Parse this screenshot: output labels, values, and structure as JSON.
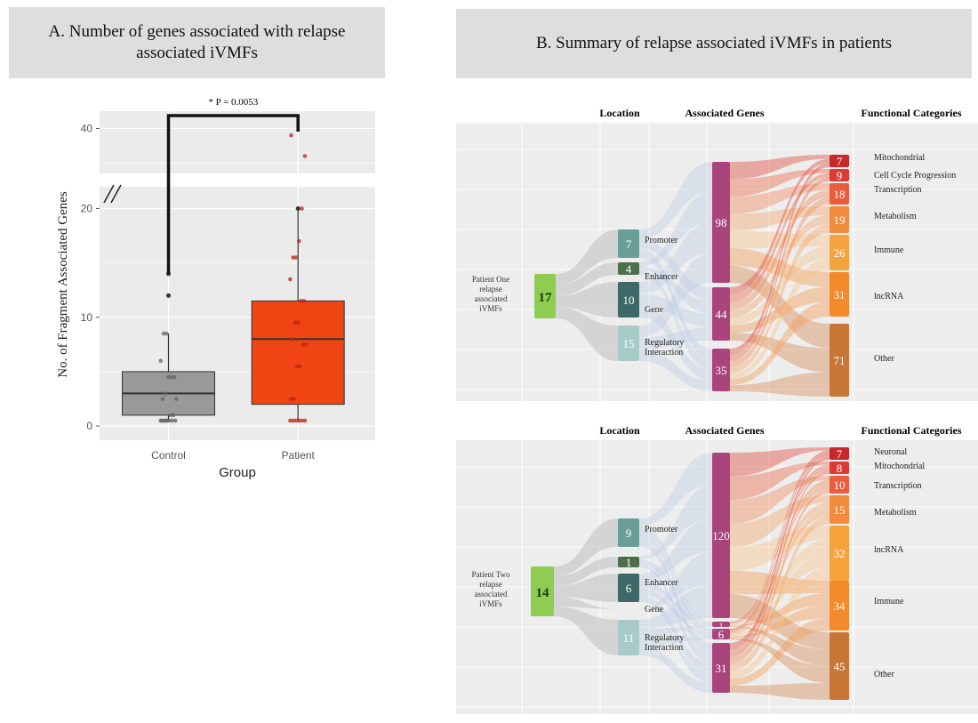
{
  "panel_a": {
    "title": "A.  Number of genes associated with relapse associated iVMFs"
  },
  "panel_b": {
    "title": "B.  Summary of relapse associated iVMFs in patients"
  },
  "chart_data": [
    {
      "type": "box",
      "title": "A.  Number of genes associated with relapse associated iVMFs",
      "xlabel": "Group",
      "ylabel": "No. of Fragment Associated Genes",
      "categories": [
        "Control",
        "Patient"
      ],
      "y_ticks_lower": [
        "0",
        "10",
        "20"
      ],
      "y_ticks_upper": [
        "40"
      ],
      "axis_break": true,
      "significance": "* P = 0.0053",
      "colors": {
        "Control": "#999999",
        "Patient": "#f04512",
        "background": "#ebebeb"
      },
      "boxes": [
        {
          "name": "Control",
          "min": 0.5,
          "q1": 1,
          "median": 3,
          "q3": 5,
          "max": 8.5,
          "outliers": [
            12,
            14
          ],
          "points": [
            0.5,
            0.5,
            0.5,
            0.5,
            0.5,
            0.5,
            0.5,
            0.5,
            0.5,
            1,
            1,
            2.5,
            2.5,
            3,
            4.5,
            4.5,
            4.5,
            6,
            8.5,
            8.5
          ]
        },
        {
          "name": "Patient",
          "min": 0.5,
          "q1": 2,
          "median": 8,
          "q3": 11.5,
          "max": 20,
          "outliers": [
            20,
            36,
            39
          ],
          "points": [
            0.5,
            0.5,
            0.5,
            0.5,
            0.5,
            0.5,
            2.5,
            2.5,
            5.5,
            5.5,
            7.5,
            7.5,
            8,
            9.5,
            9.5,
            11.5,
            11.5,
            13.5,
            15.5,
            15.5,
            17,
            20,
            36,
            39
          ]
        }
      ]
    },
    {
      "type": "sankey",
      "name": "Patient One",
      "source_label": "Patient One relapse associated iVMFs",
      "source_value": 17,
      "column_headers": [
        "Location",
        "Associated Genes",
        "Functional Categories"
      ],
      "locations": [
        {
          "label": "Promoter",
          "value": 7
        },
        {
          "label": "Enhancer",
          "value": 4
        },
        {
          "label": "Gene",
          "value": 10
        },
        {
          "label": "Regulatory Interaction",
          "value": 15
        }
      ],
      "genes": [
        {
          "label": "98",
          "value": 98
        },
        {
          "label": "44",
          "value": 44
        },
        {
          "label": "35",
          "value": 35
        }
      ],
      "categories": [
        {
          "label": "Mitochondrial",
          "value": 7
        },
        {
          "label": "Cell Cycle Progression",
          "value": 9
        },
        {
          "label": "Transcription",
          "value": 18
        },
        {
          "label": "Metabolism",
          "value": 19
        },
        {
          "label": "Immune",
          "value": 26
        },
        {
          "label": "lncRNA",
          "value": 31
        },
        {
          "label": "Other",
          "value": 71
        }
      ]
    },
    {
      "type": "sankey",
      "name": "Patient Two",
      "source_label": "Patient Two relapse associated iVMFs",
      "source_value": 14,
      "column_headers": [
        "Location",
        "Associated Genes",
        "Functional Categories"
      ],
      "locations": [
        {
          "label": "Promoter",
          "value": 9
        },
        {
          "label": "",
          "value": 1
        },
        {
          "label": "Enhancer",
          "value": 6
        },
        {
          "label": "Gene",
          "value": null
        },
        {
          "label": "Regulatory Interaction",
          "value": 11
        }
      ],
      "genes": [
        {
          "label": "120",
          "value": 120
        },
        {
          "label": "1",
          "value": 1
        },
        {
          "label": "6",
          "value": 6
        },
        {
          "label": "31",
          "value": 31
        }
      ],
      "categories": [
        {
          "label": "Neuronal",
          "value": 7
        },
        {
          "label": "Mitochondrial",
          "value": 8
        },
        {
          "label": "Transcription",
          "value": 10
        },
        {
          "label": "Metabolism",
          "value": 15
        },
        {
          "label": "lncRNA",
          "value": 32
        },
        {
          "label": "Immune",
          "value": 34
        },
        {
          "label": "Other",
          "value": 45
        }
      ]
    }
  ]
}
